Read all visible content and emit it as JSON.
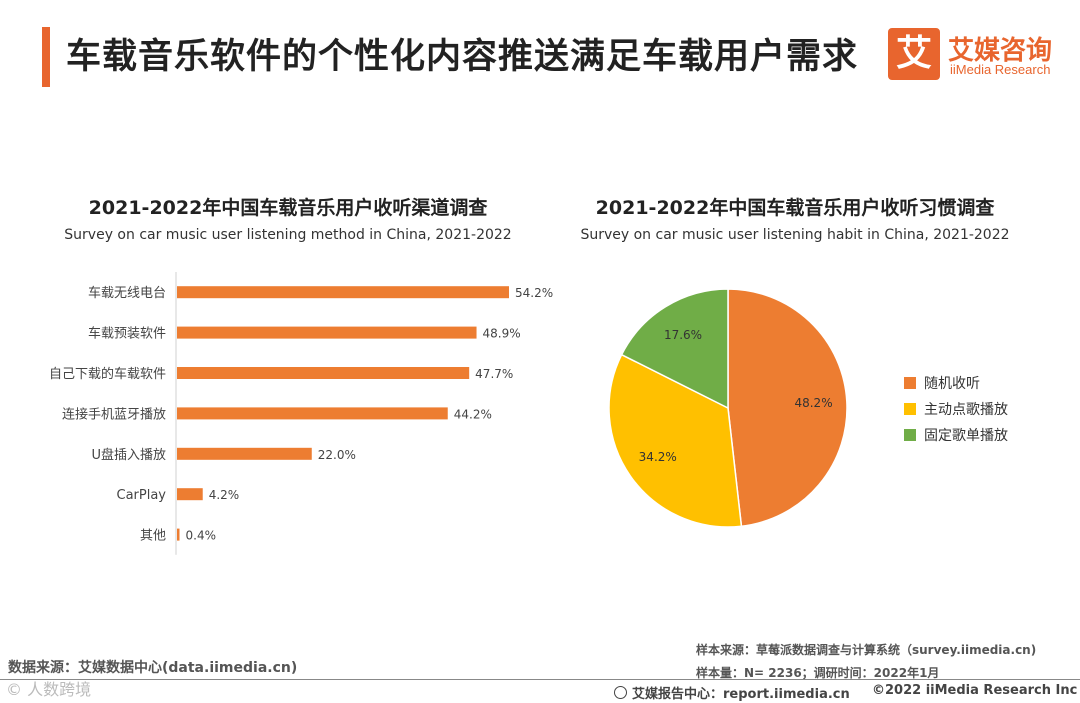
{
  "header": {
    "title": "车载音乐软件的个性化内容推送满足车载用户需求",
    "logo_mark": "艾",
    "logo_cn": "艾媒咨询",
    "logo_en": "iiMedia Research"
  },
  "chart_data": [
    {
      "type": "bar",
      "orientation": "horizontal",
      "title": "2021-2022年中国车载音乐用户收听渠道调查",
      "subtitle": "Survey on car music user listening method in China, 2021-2022",
      "categories": [
        "车载无线电台",
        "车载预装软件",
        "自己下载的车载软件",
        "连接手机蓝牙播放",
        "U盘插入播放",
        "CarPlay",
        "其他"
      ],
      "values": [
        54.2,
        48.9,
        47.7,
        44.2,
        22.0,
        4.2,
        0.4
      ],
      "labels": [
        "54.2%",
        "48.9%",
        "47.7%",
        "44.2%",
        "22.0%",
        "4.2%",
        "0.4%"
      ],
      "xlim": [
        0,
        60
      ],
      "color": "#ED7D31"
    },
    {
      "type": "pie",
      "title": "2021-2022年中国车载音乐用户收听习惯调查",
      "subtitle": "Survey on car music user listening habit in China, 2021-2022",
      "slices": [
        {
          "name": "随机收听",
          "value": 48.2,
          "label": "48.2%",
          "color": "#ED7D31"
        },
        {
          "name": "主动点歌播放",
          "value": 34.2,
          "label": "34.2%",
          "color": "#FFC000"
        },
        {
          "name": "固定歌单播放",
          "value": 17.6,
          "label": "17.6%",
          "color": "#70AD47"
        }
      ]
    }
  ],
  "footer": {
    "data_source": "数据来源：艾媒数据中心(data.iimedia.cn)",
    "sample_source": "样本来源：草莓派数据调查与计算系统（survey.iimedia.cn)",
    "sample_size": "样本量：N= 2236；调研时间：2022年1月",
    "report_center": "艾媒报告中心：report.iimedia.cn",
    "copyright": "©2022  iiMedia Research  Inc",
    "watermark": "© 人数跨境"
  }
}
